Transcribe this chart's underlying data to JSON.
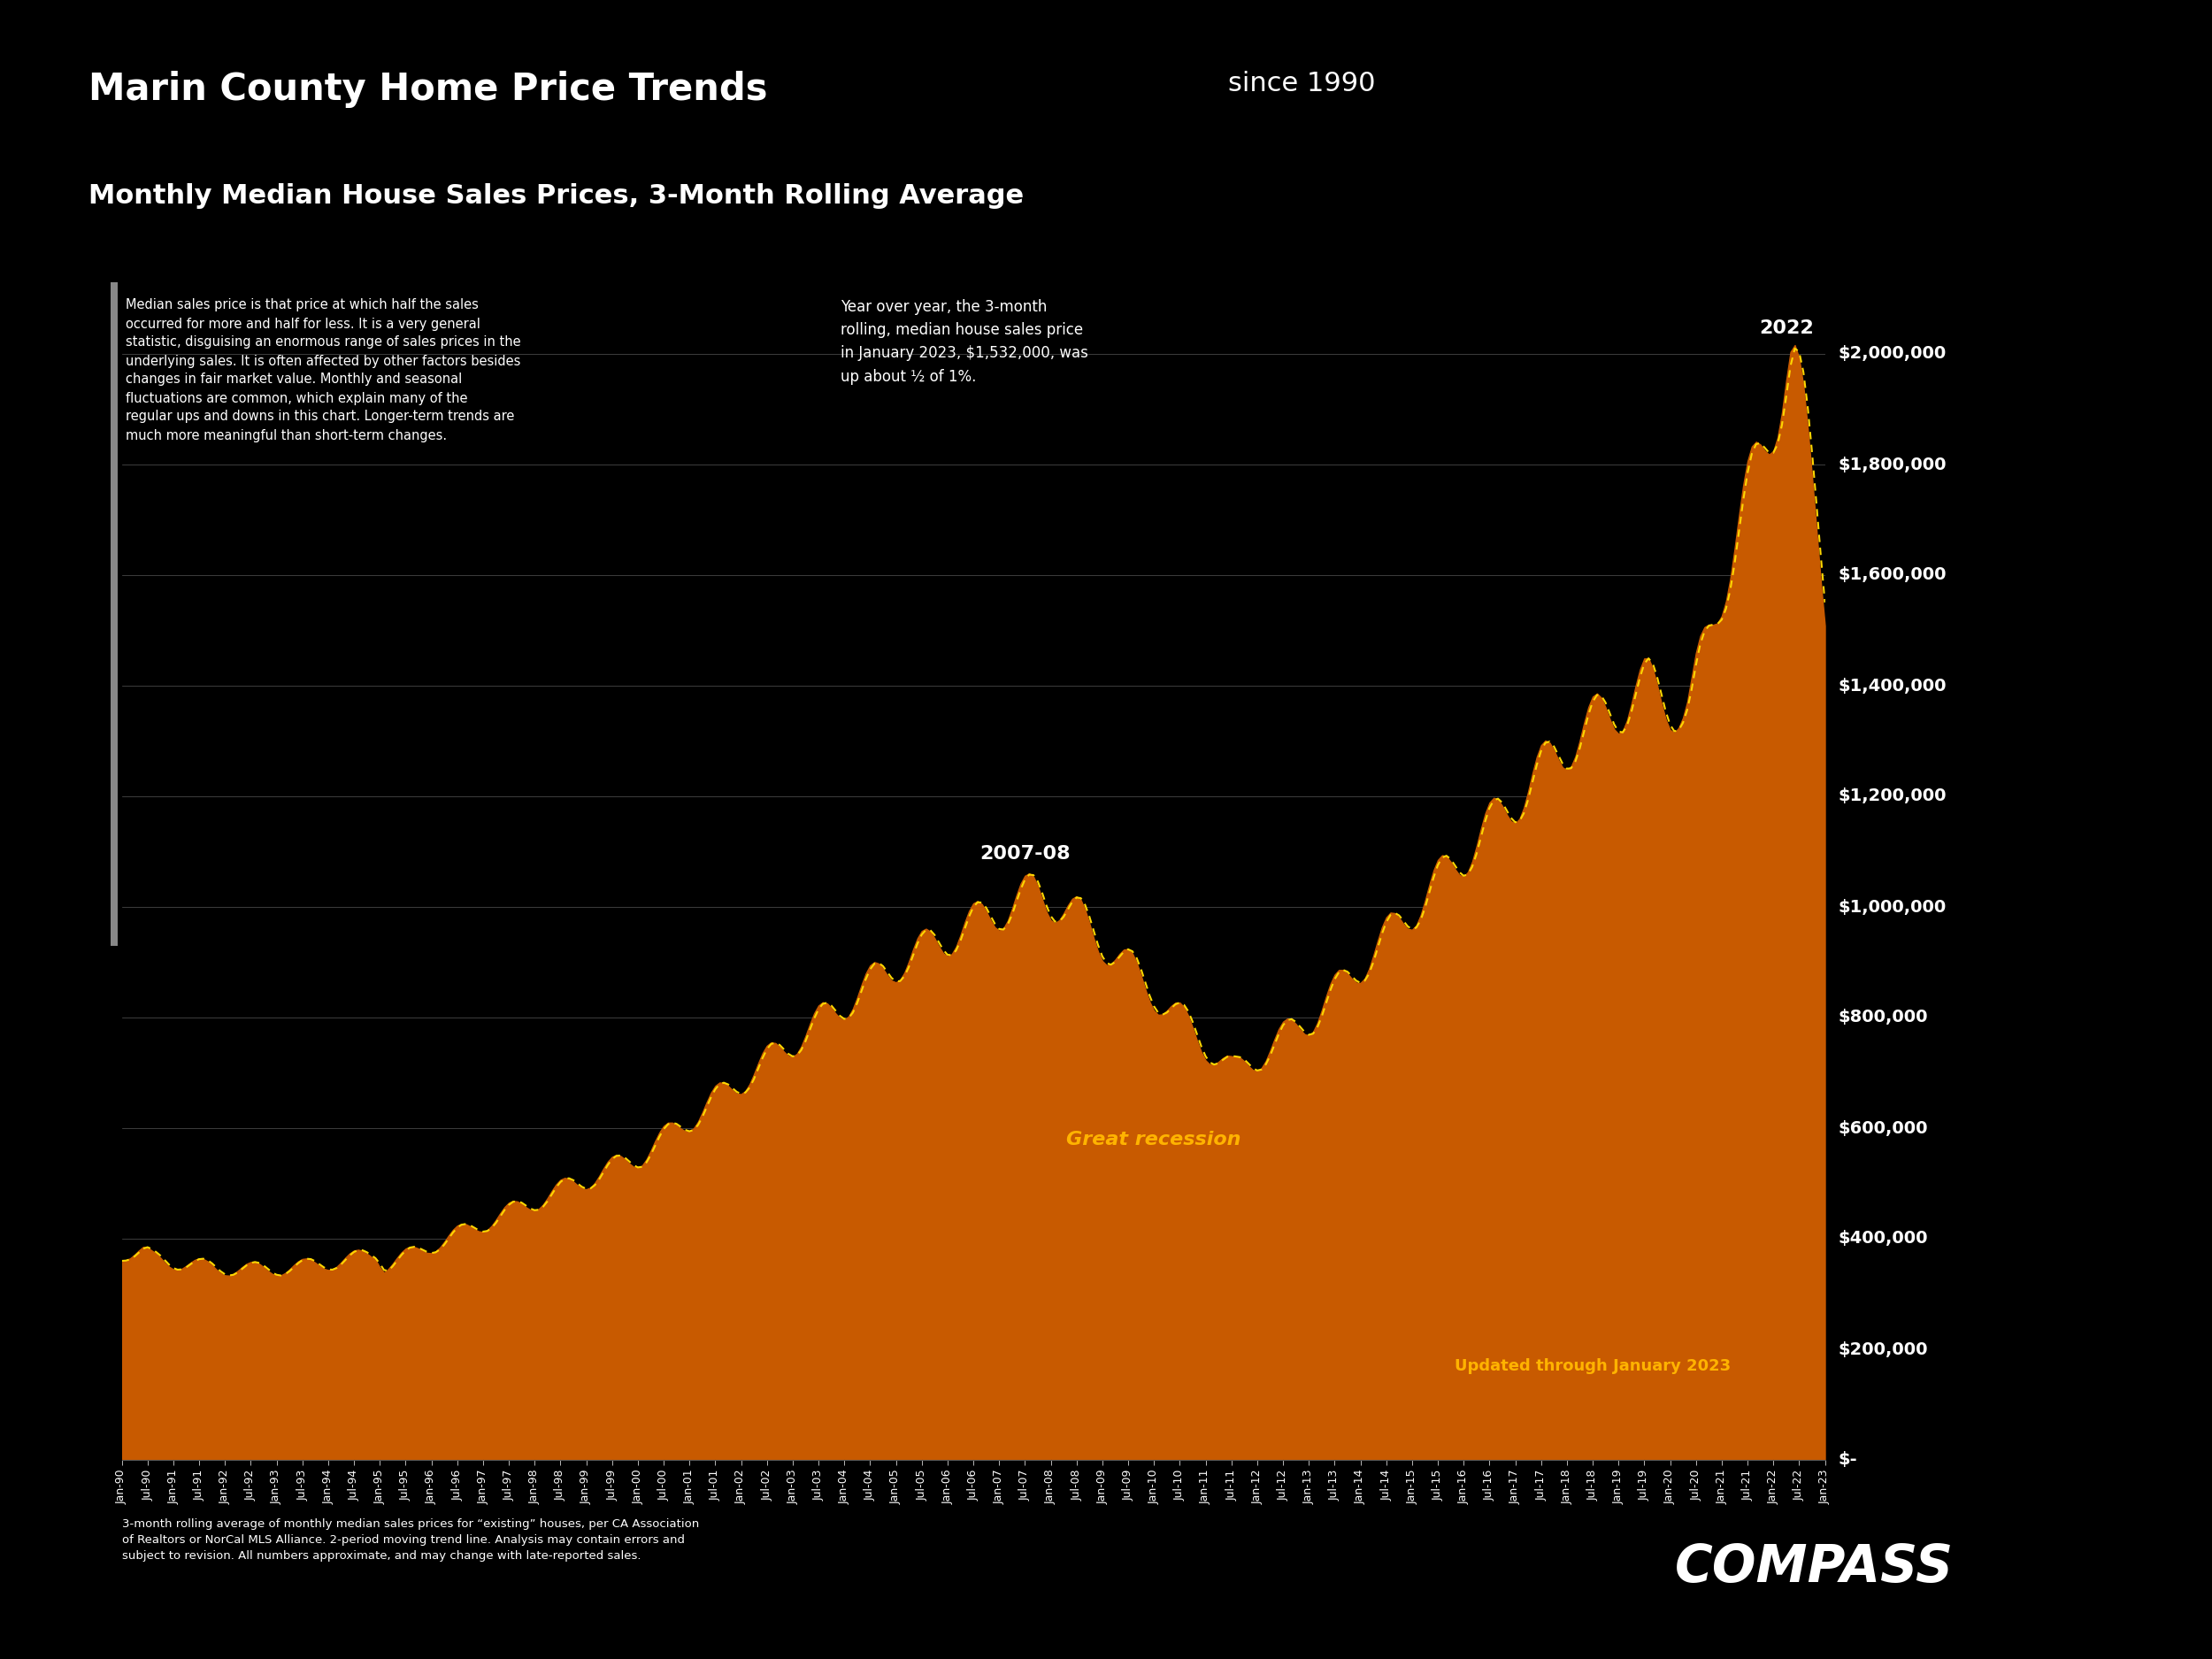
{
  "title_main": "Marin County Home Price Trends",
  "title_since": " since 1990",
  "title_sub": "Monthly Median House Sales Prices, 3-Month Rolling Average",
  "background_color": "#000000",
  "area_color": "#C85A00",
  "line_color": "#FFD700",
  "text_color": "#FFFFFF",
  "annotation_color": "#FFB300",
  "ylim": [
    0,
    2100000
  ],
  "yticks": [
    0,
    200000,
    400000,
    600000,
    800000,
    1000000,
    1200000,
    1400000,
    1600000,
    1800000,
    2000000
  ],
  "ytick_labels": [
    "$-",
    "$200,000",
    "$400,000",
    "$600,000",
    "$800,000",
    "$1,000,000",
    "$1,200,000",
    "$1,400,000",
    "$1,600,000",
    "$1,800,000",
    "$2,000,000"
  ],
  "annotation_2007": "2007-08",
  "annotation_2022": "2022",
  "annotation_recession": "Great recession",
  "annotation_updated": "Updated through January 2023",
  "annotation_yoy": "Year over year, the 3-month\nrolling, median house sales price\nin January 2023, $1,532,000, was\nup about ½ of 1%.",
  "footnote": "3-month rolling average of monthly median sales prices for “existing” houses, per CA Association\nof Realtors or NorCal MLS Alliance. 2-period moving trend line. Analysis may contain errors and\nsubject to revision. All numbers approximate, and may change with late-reported sales.",
  "left_text_line1": "Median sales price is that price at which half the sales",
  "left_text_line2": "occurred for more and half for less. It is a very general",
  "left_text_line3": "statistic, disguising an enormous range of sales prices in the",
  "left_text_line4": "underlying sales. It is often affected by other factors besides",
  "left_text_line5": "changes in fair market value. Monthly and seasonal",
  "left_text_line6": "fluctuations are common, which explain many of the",
  "left_text_line7": "regular ups and downs in this chart. Longer-term trends are",
  "left_text_line8": "much more meaningful than short-term changes.",
  "compass_text": "COMPASS"
}
